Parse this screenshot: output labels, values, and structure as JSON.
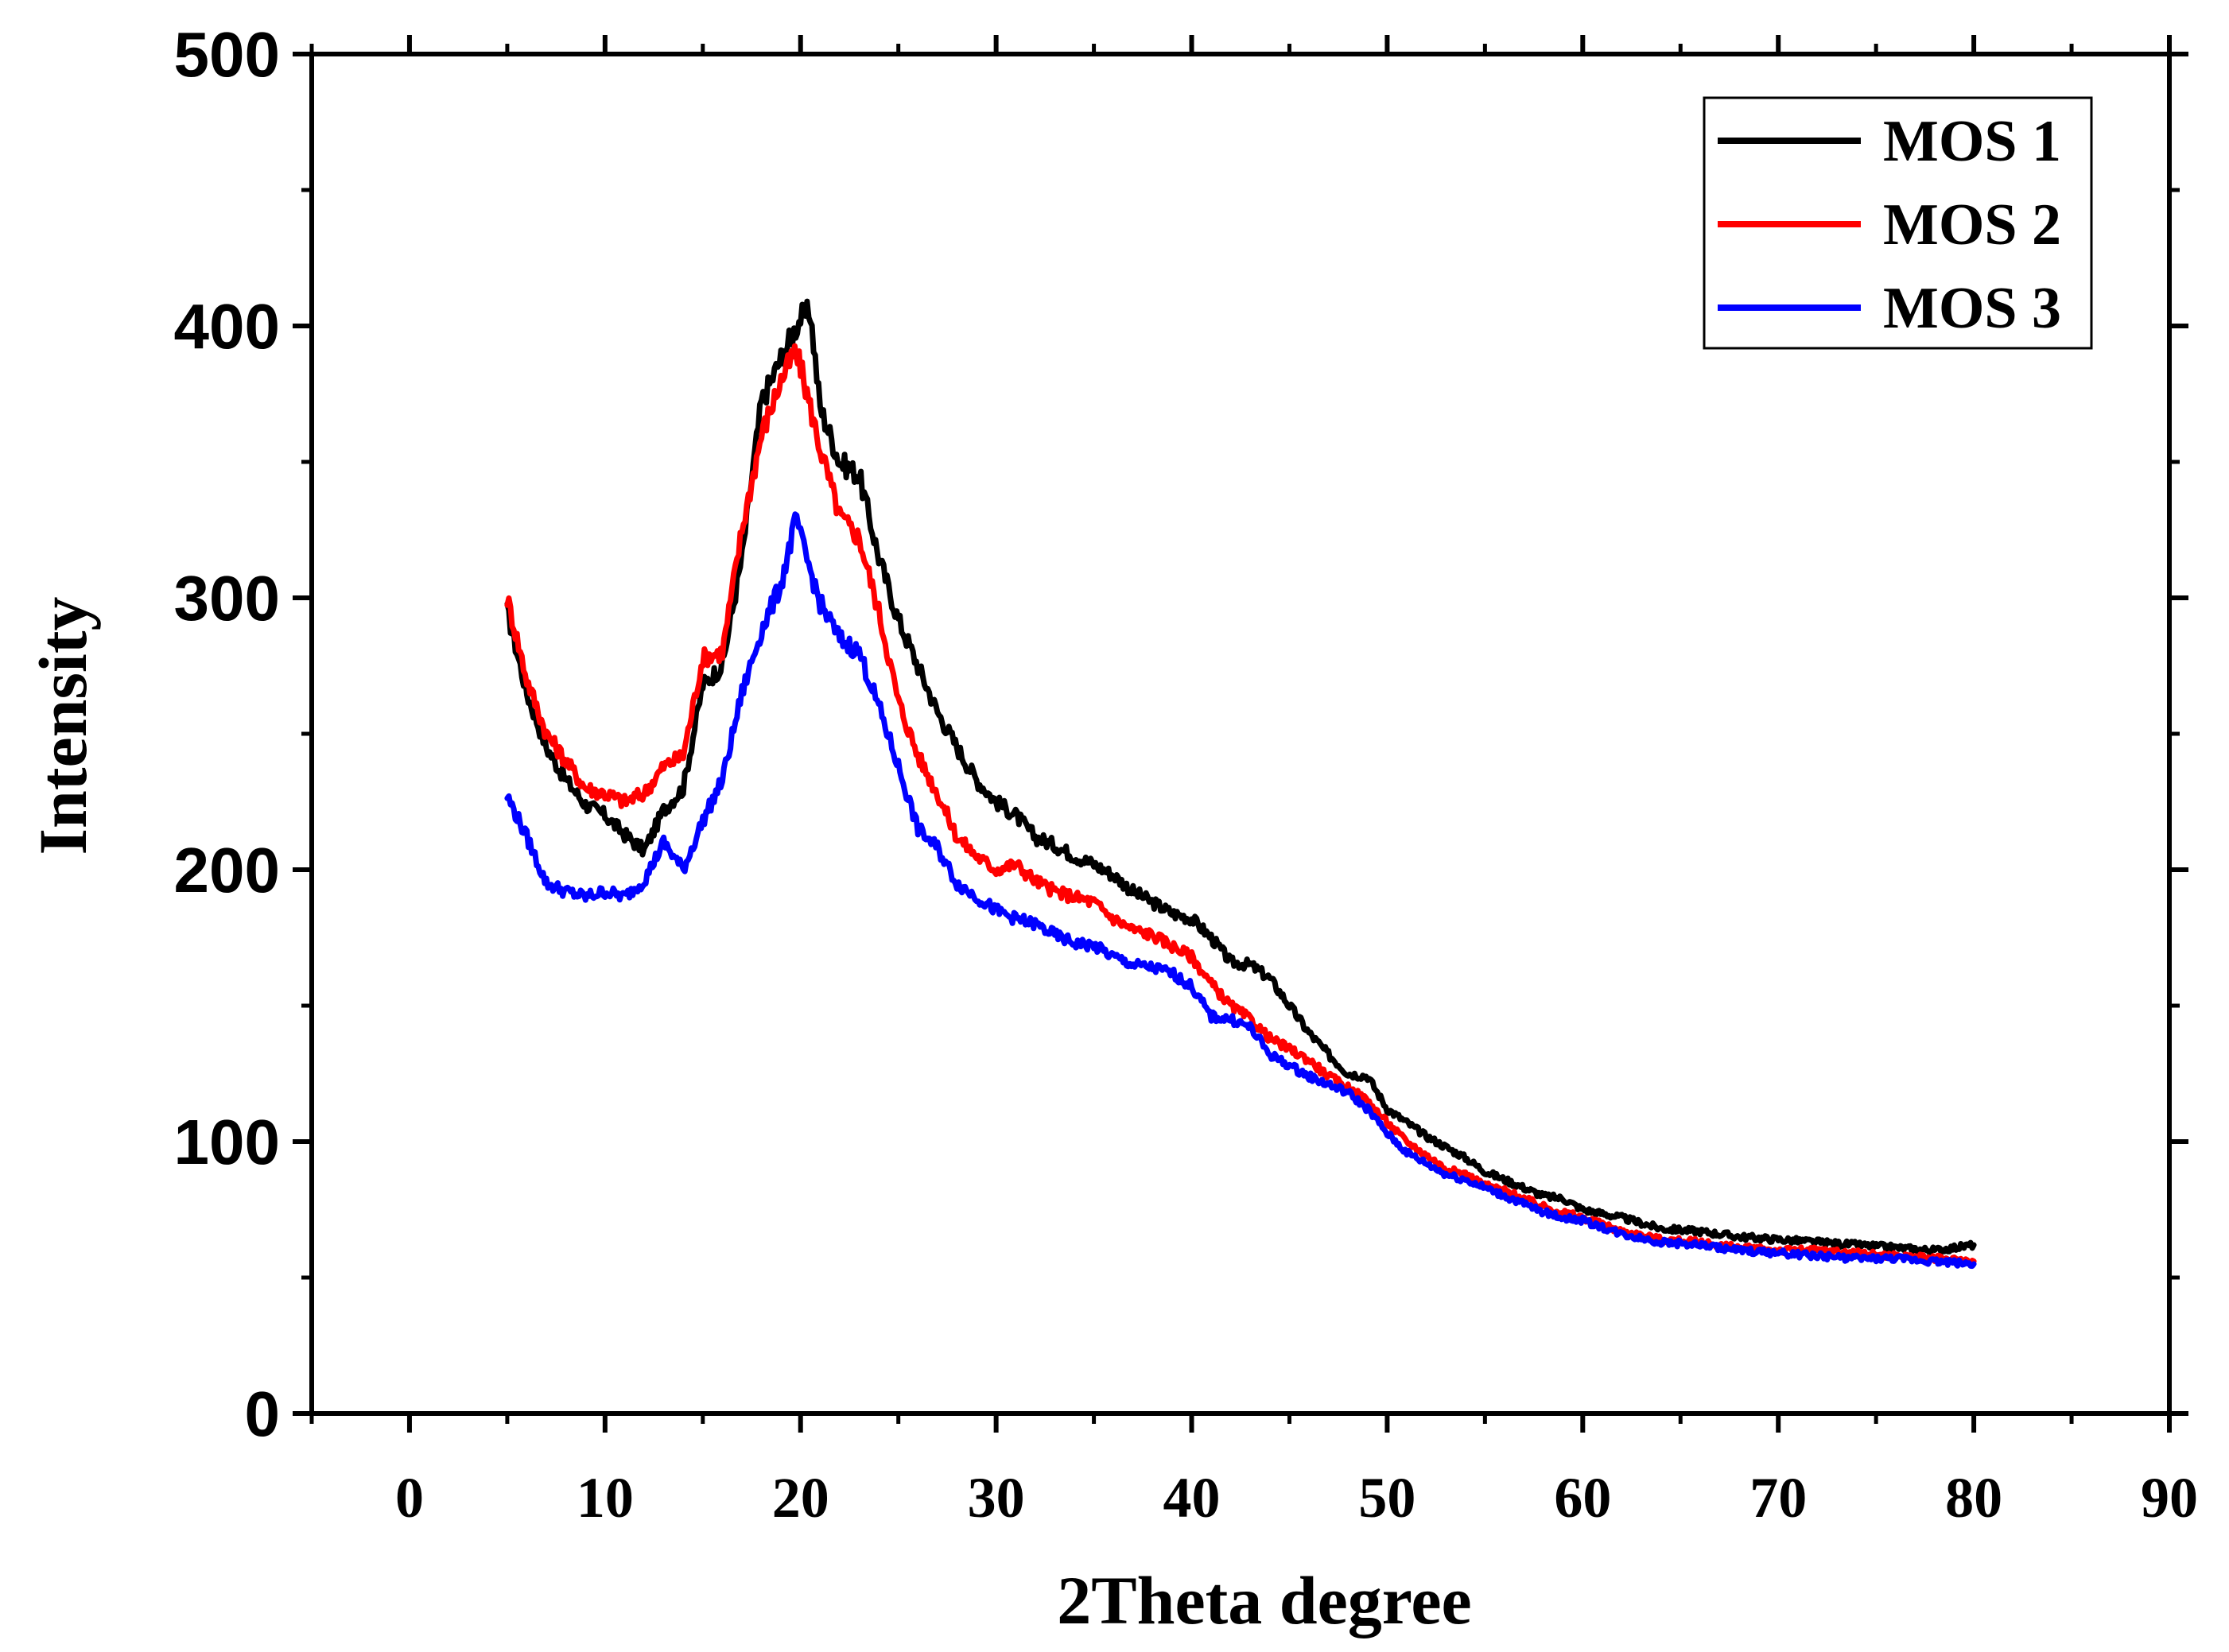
{
  "chart_data": {
    "type": "line",
    "title": "",
    "xlabel": "2Theta degree",
    "ylabel": "Intensity",
    "xlim": [
      -5,
      90
    ],
    "ylim": [
      0,
      500
    ],
    "xticks": [
      0,
      10,
      20,
      30,
      40,
      50,
      60,
      70,
      80,
      90
    ],
    "xtick_labels": [
      "0",
      "10",
      "20",
      "30",
      "40",
      "50",
      "60",
      "70",
      "80",
      "90"
    ],
    "yticks": [
      0,
      100,
      200,
      300,
      400,
      500
    ],
    "ytick_labels": [
      "0",
      "100",
      "200",
      "300",
      "400",
      "500"
    ],
    "legend_position": "top-right",
    "series": [
      {
        "name": "MOS 1",
        "color": "#000000",
        "x": [
          5,
          6,
          7,
          8,
          9,
          10,
          11,
          12,
          13,
          14,
          15,
          16,
          17,
          18,
          19,
          20,
          20.5,
          21,
          22,
          23,
          24,
          25,
          26,
          27,
          28,
          29,
          30,
          31,
          32,
          33,
          34,
          35,
          36,
          37,
          38,
          39,
          40,
          41,
          42,
          43,
          44,
          45,
          46,
          47,
          48,
          49,
          50,
          51,
          52,
          53,
          54,
          55,
          56,
          57,
          58,
          59,
          60,
          62,
          64,
          66,
          68,
          70,
          72,
          74,
          76,
          78,
          80
        ],
        "y": [
          295,
          265,
          245,
          233,
          224,
          220,
          213,
          207,
          222,
          230,
          268,
          275,
          315,
          372,
          388,
          403,
          405,
          370,
          350,
          345,
          315,
          292,
          275,
          258,
          245,
          233,
          225,
          220,
          212,
          209,
          205,
          202,
          198,
          192,
          188,
          184,
          182,
          175,
          166,
          165,
          160,
          150,
          140,
          132,
          125,
          124,
          112,
          107,
          102,
          98,
          94,
          89,
          86,
          83,
          80,
          79,
          75,
          72,
          68,
          67,
          65,
          64,
          63,
          62,
          61,
          60,
          62
        ]
      },
      {
        "name": "MOS 2",
        "color": "#ff0000",
        "x": [
          5,
          6,
          7,
          8,
          9,
          10,
          11,
          12,
          13,
          14,
          15,
          16,
          17,
          18,
          19,
          19.7,
          20,
          21,
          22,
          23,
          24,
          25,
          26,
          27,
          28,
          29,
          30,
          31,
          32,
          33,
          34,
          35,
          36,
          37,
          38,
          39,
          40,
          41,
          42,
          43,
          44,
          45,
          46,
          47,
          48,
          49,
          50,
          51,
          52,
          53,
          54,
          55,
          56,
          57,
          58,
          59,
          60,
          62,
          64,
          66,
          68,
          70,
          72,
          74,
          76,
          78,
          80
        ],
        "y": [
          300,
          270,
          250,
          240,
          230,
          228,
          225,
          228,
          238,
          242,
          278,
          280,
          325,
          360,
          380,
          390,
          385,
          355,
          330,
          322,
          295,
          262,
          242,
          228,
          212,
          205,
          200,
          202,
          196,
          192,
          190,
          188,
          182,
          178,
          176,
          172,
          168,
          158,
          150,
          145,
          138,
          134,
          130,
          124,
          120,
          115,
          107,
          100,
          95,
          90,
          88,
          84,
          82,
          79,
          76,
          74,
          72,
          67,
          64,
          63,
          61,
          60,
          60,
          59,
          58,
          57,
          56
        ]
      },
      {
        "name": "MOS 3",
        "color": "#0000ff",
        "x": [
          5,
          6,
          7,
          8,
          9,
          10,
          11,
          12,
          13,
          14,
          15,
          16,
          17,
          18,
          19,
          19.8,
          20,
          21,
          22,
          23,
          24,
          25,
          26,
          27,
          28,
          29,
          30,
          31,
          32,
          33,
          34,
          35,
          36,
          37,
          38,
          39,
          40,
          41,
          42,
          43,
          44,
          45,
          46,
          47,
          48,
          49,
          50,
          51,
          52,
          53,
          54,
          55,
          56,
          57,
          58,
          59,
          60,
          62,
          64,
          66,
          68,
          70,
          72,
          74,
          76,
          78,
          80
        ],
        "y": [
          227,
          212,
          195,
          192,
          190,
          192,
          190,
          196,
          210,
          200,
          218,
          233,
          265,
          288,
          305,
          330,
          322,
          298,
          285,
          280,
          260,
          238,
          215,
          208,
          195,
          190,
          185,
          182,
          180,
          176,
          173,
          172,
          168,
          165,
          164,
          162,
          157,
          146,
          145,
          142,
          132,
          128,
          124,
          121,
          118,
          112,
          103,
          96,
          92,
          88,
          86,
          83,
          80,
          77,
          74,
          72,
          71,
          66,
          63,
          62,
          60,
          59,
          58,
          57,
          57,
          56,
          55
        ]
      }
    ]
  }
}
